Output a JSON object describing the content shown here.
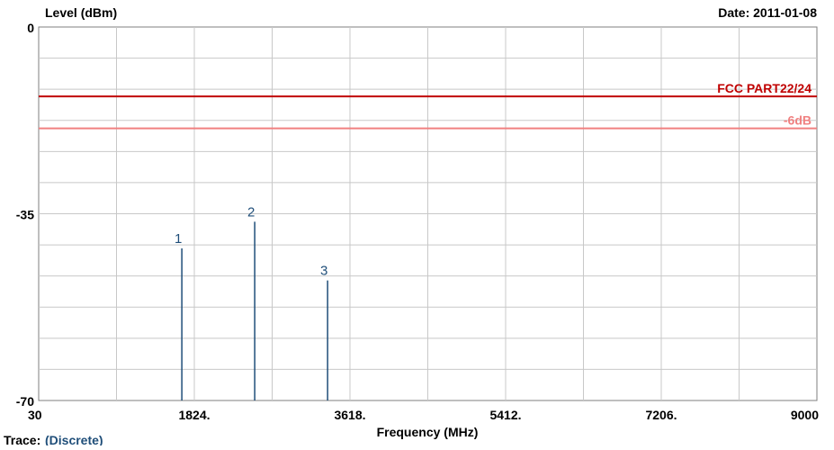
{
  "chart_data": {
    "type": "bar",
    "title": "",
    "ylabel": "Level (dBm)",
    "xlabel": "Frequency (MHz)",
    "date_label": "Date: 2011-01-08",
    "trace_label": "Trace:",
    "trace_value": "(Discrete)",
    "xlim": [
      30,
      9000
    ],
    "ylim": [
      -70,
      0
    ],
    "x_tick_labels": [
      "30",
      "1824.",
      "3618.",
      "5412.",
      "7206.",
      "9000"
    ],
    "y_tick_labels": [
      "0",
      "-35",
      "-70"
    ],
    "grid": true,
    "limit_lines": [
      {
        "name": "FCC PART22/24",
        "value": -13,
        "color": "#c00000"
      },
      {
        "name": "-6dB",
        "value": -19,
        "color": "#f08080"
      }
    ],
    "series": [
      {
        "color": "#1f4e79",
        "points": [
          {
            "label": "1",
            "x": 1680,
            "y": -41.5
          },
          {
            "label": "2",
            "x": 2520,
            "y": -36.5
          },
          {
            "label": "3",
            "x": 3360,
            "y": -47.5
          }
        ]
      }
    ]
  }
}
